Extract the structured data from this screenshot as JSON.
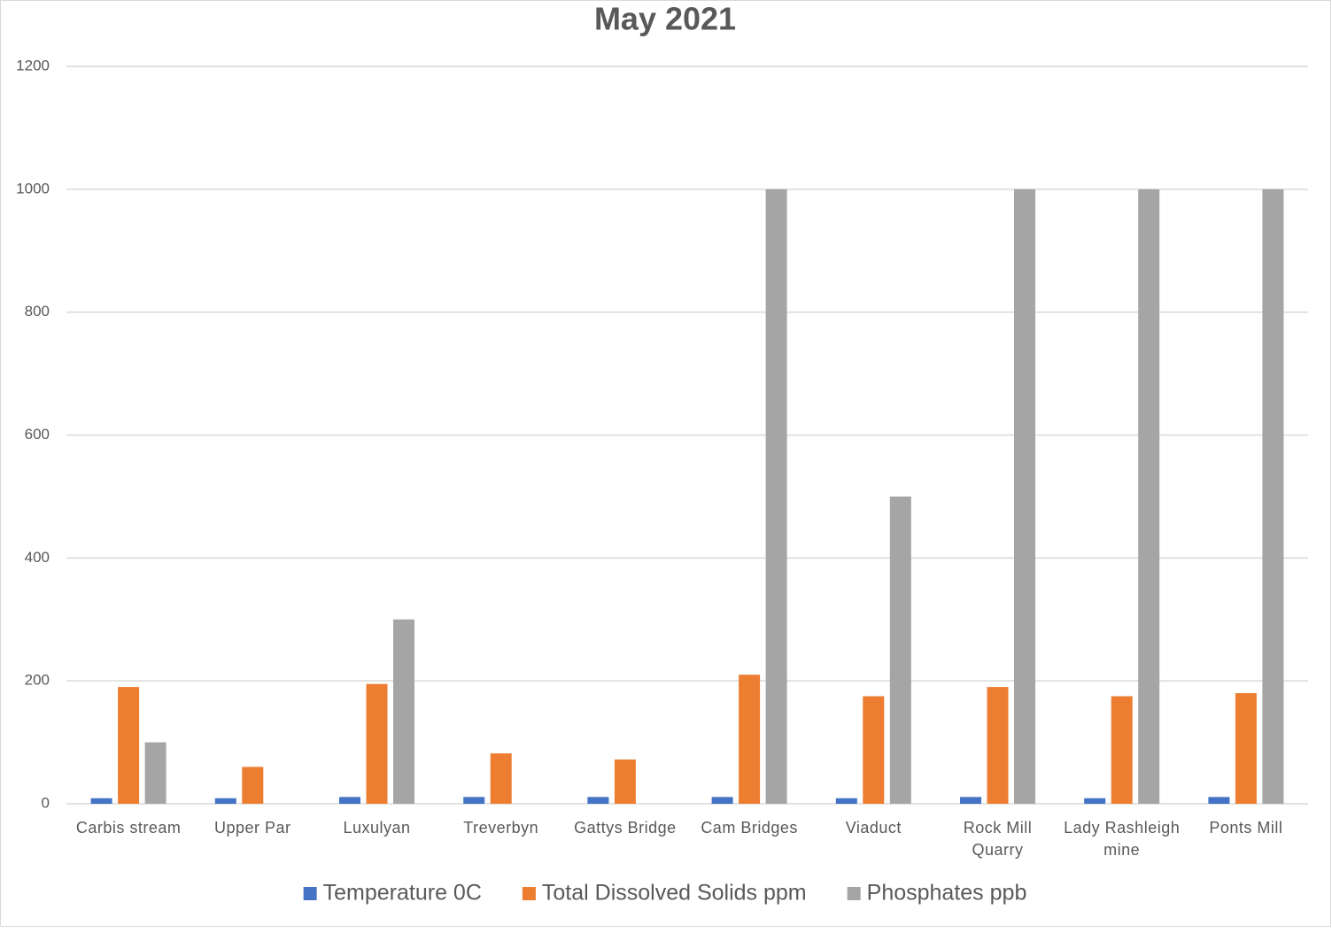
{
  "chart_data": {
    "type": "bar",
    "title": "May 2021",
    "categories": [
      "Carbis stream",
      "Upper Par",
      "Luxulyan",
      "Treverbyn",
      "Gattys Bridge",
      "Cam Bridges",
      "Viaduct",
      "Rock Mill Quarry",
      "Lady Rashleigh mine",
      "Ponts Mill"
    ],
    "series": [
      {
        "name": "Temperature 0C",
        "color": "#4472c4",
        "values": [
          9,
          9,
          11,
          11,
          11,
          11,
          9,
          11,
          9,
          11
        ]
      },
      {
        "name": "Total Dissolved Solids ppm",
        "color": "#ed7d31",
        "values": [
          190,
          60,
          195,
          82,
          72,
          210,
          175,
          190,
          175,
          180
        ]
      },
      {
        "name": "Phosphates ppb",
        "color": "#a5a5a5",
        "values": [
          100,
          null,
          300,
          null,
          null,
          1000,
          500,
          1000,
          1000,
          1000
        ]
      }
    ],
    "ylim": [
      0,
      1200
    ],
    "yticks": [
      0,
      200,
      400,
      600,
      800,
      1000,
      1200
    ],
    "grid": true,
    "legend": "bottom"
  }
}
